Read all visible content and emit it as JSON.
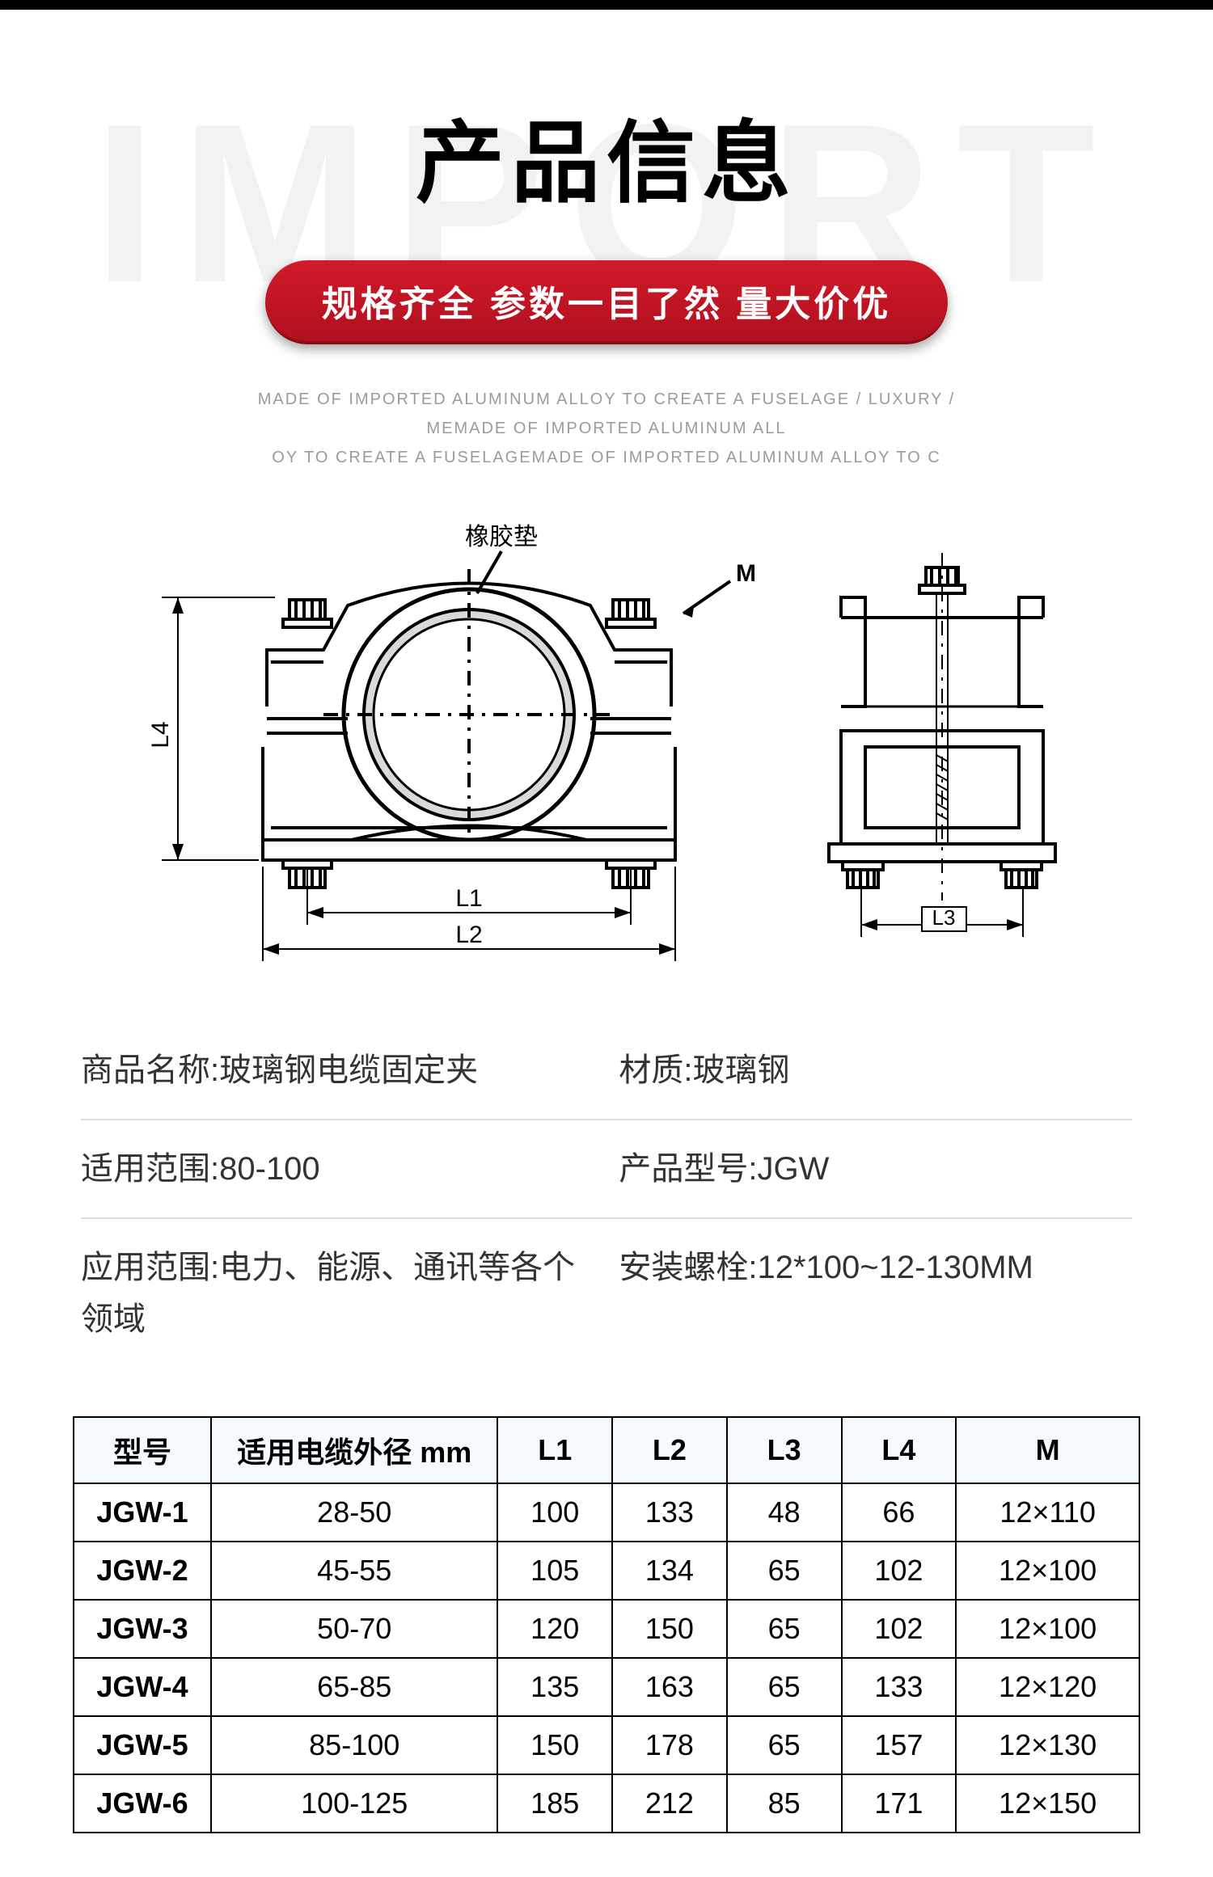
{
  "header": {
    "top_bar_color": "#000000",
    "watermark": "IMPORT",
    "watermark_color": "#f2f2f2",
    "title": "产品信息",
    "title_color": "#000000",
    "title_fontsize": 110,
    "pill_text": "规格齐全 参数一目了然 量大价优",
    "pill_bg_top": "#d21a2a",
    "pill_bg_bottom": "#b0101f",
    "pill_text_color": "#ffffff",
    "pill_fontsize": 44,
    "sub_line1": "MADE OF IMPORTED ALUMINUM ALLOY TO CREATE A FUSELAGE / LUXURY / MEMADE OF IMPORTED ALUMINUM ALL",
    "sub_line2": "OY TO CREATE A FUSELAGEMADE OF IMPORTED ALUMINUM ALLOY TO C",
    "sub_color": "#9b9b9b"
  },
  "diagram": {
    "rubber_label": "橡胶垫",
    "m_label": "M",
    "l1_label": "L1",
    "l2_label": "L2",
    "l3_label": "L3",
    "l4_label": "L4",
    "stroke_color": "#000000",
    "rubber_fill": "#d9d9d9",
    "label_fontsize": 28
  },
  "info": {
    "name_label": "商品名称:",
    "name_value": "玻璃钢电缆固定夹",
    "material_label": "材质:",
    "material_value": "玻璃钢",
    "range_label": "适用范围:",
    "range_value": "80-100",
    "model_label": "产品型号:",
    "model_value": "JGW",
    "app_label": "应用范围:",
    "app_value": "电力、能源、通讯等各个领域",
    "bolt_label": "安装螺栓:",
    "bolt_value": "12*100~12-130MM",
    "fontsize": 40,
    "text_color": "#333333",
    "divider_color": "#dcdcdc"
  },
  "spec_table": {
    "columns": [
      "型号",
      "适用电缆外径 mm",
      "L1",
      "L2",
      "L3",
      "L4",
      "M"
    ],
    "column_widths_pct": [
      12,
      25,
      10,
      10,
      10,
      10,
      16
    ],
    "header_bg": "#f5faff",
    "border_color": "#000000",
    "fontsize": 36,
    "rows": [
      [
        "JGW-1",
        "28-50",
        "100",
        "133",
        "48",
        "66",
        "12×110"
      ],
      [
        "JGW-2",
        "45-55",
        "105",
        "134",
        "65",
        "102",
        "12×100"
      ],
      [
        "JGW-3",
        "50-70",
        "120",
        "150",
        "65",
        "102",
        "12×100"
      ],
      [
        "JGW-4",
        "65-85",
        "135",
        "163",
        "65",
        "133",
        "12×120"
      ],
      [
        "JGW-5",
        "85-100",
        "150",
        "178",
        "65",
        "157",
        "12×130"
      ],
      [
        "JGW-6",
        "100-125",
        "185",
        "212",
        "85",
        "171",
        "12×150"
      ]
    ]
  }
}
